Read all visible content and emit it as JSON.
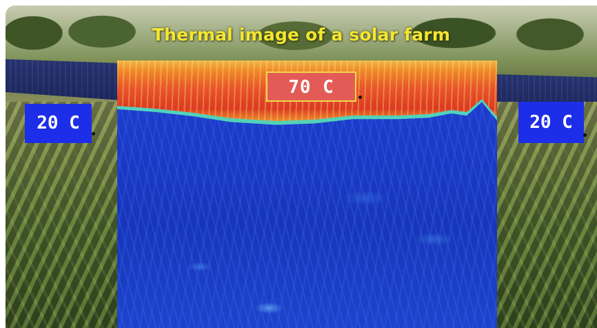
{
  "image": {
    "title": "Thermal image of a solar farm",
    "labels": {
      "left": "20 C",
      "center": "70 C",
      "right": "20 C"
    },
    "colors": {
      "title_text": "#f3e630",
      "ambient_label_bg": "#1d2ee8",
      "hot_label_bg": "#e35b57",
      "hot_label_border": "#f0d94a"
    }
  }
}
